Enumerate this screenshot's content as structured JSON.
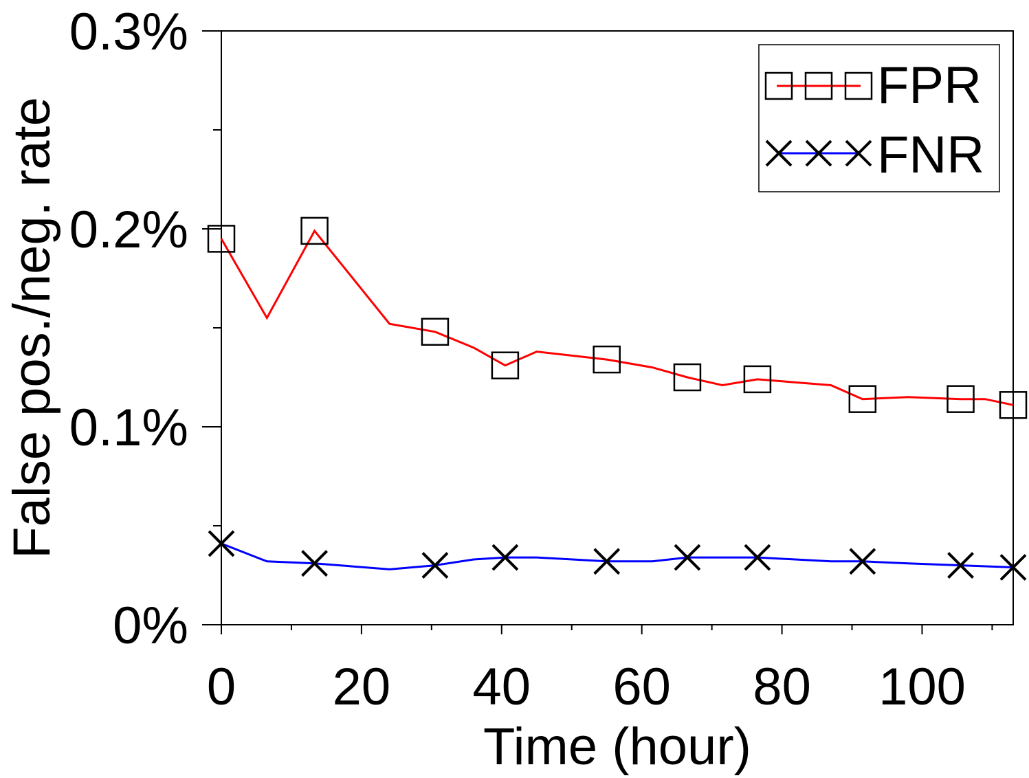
{
  "chart_data": {
    "type": "line",
    "title": "",
    "xlabel": "Time (hour)",
    "ylabel": "False pos./neg. rate",
    "xlim": [
      0,
      113
    ],
    "ylim": [
      0,
      0.3
    ],
    "x_ticks": [
      0,
      20,
      40,
      60,
      80,
      100
    ],
    "x_tick_labels": [
      "0",
      "20",
      "40",
      "60",
      "80",
      "100"
    ],
    "x_minor_ticks": [
      10,
      30,
      50,
      70,
      90,
      110
    ],
    "y_ticks": [
      0,
      0.1,
      0.2,
      0.3
    ],
    "y_tick_labels": [
      "0%",
      "0.1%",
      "0.2%",
      "0.3%"
    ],
    "y_minor_ticks": [
      0.05,
      0.15,
      0.25
    ],
    "grid": false,
    "legend_position": "top-right",
    "series": [
      {
        "name": "FPR",
        "color": "#ff0000",
        "marker": "square",
        "x": [
          0,
          6.5,
          13.3,
          24,
          30.5,
          36,
          40.5,
          45,
          55,
          61.5,
          66.5,
          71.5,
          76.5,
          87,
          91.5,
          98,
          105.5,
          109,
          113
        ],
        "y": [
          0.195,
          0.155,
          0.199,
          0.152,
          0.148,
          0.14,
          0.131,
          0.138,
          0.134,
          0.13,
          0.125,
          0.121,
          0.124,
          0.121,
          0.114,
          0.115,
          0.114,
          0.114,
          0.111
        ],
        "marker_x": [
          0,
          13.3,
          30.5,
          40.5,
          55,
          66.5,
          76.5,
          91.5,
          105.5,
          113
        ],
        "marker_y": [
          0.195,
          0.199,
          0.148,
          0.131,
          0.134,
          0.125,
          0.124,
          0.114,
          0.114,
          0.111
        ]
      },
      {
        "name": "FNR",
        "color": "#0000ff",
        "marker": "x",
        "x": [
          0,
          6.5,
          13.3,
          24,
          30.5,
          36,
          40.5,
          45,
          55,
          61.5,
          66.5,
          71.5,
          76.5,
          87,
          91.5,
          98,
          105.5,
          113
        ],
        "y": [
          0.041,
          0.032,
          0.031,
          0.028,
          0.03,
          0.033,
          0.034,
          0.034,
          0.032,
          0.032,
          0.034,
          0.034,
          0.034,
          0.032,
          0.032,
          0.031,
          0.03,
          0.029
        ],
        "marker_x": [
          0,
          13.3,
          30.5,
          40.5,
          55,
          66.5,
          76.5,
          91.5,
          105.5,
          113
        ],
        "marker_y": [
          0.041,
          0.031,
          0.03,
          0.034,
          0.032,
          0.034,
          0.034,
          0.032,
          0.03,
          0.029
        ]
      }
    ]
  }
}
